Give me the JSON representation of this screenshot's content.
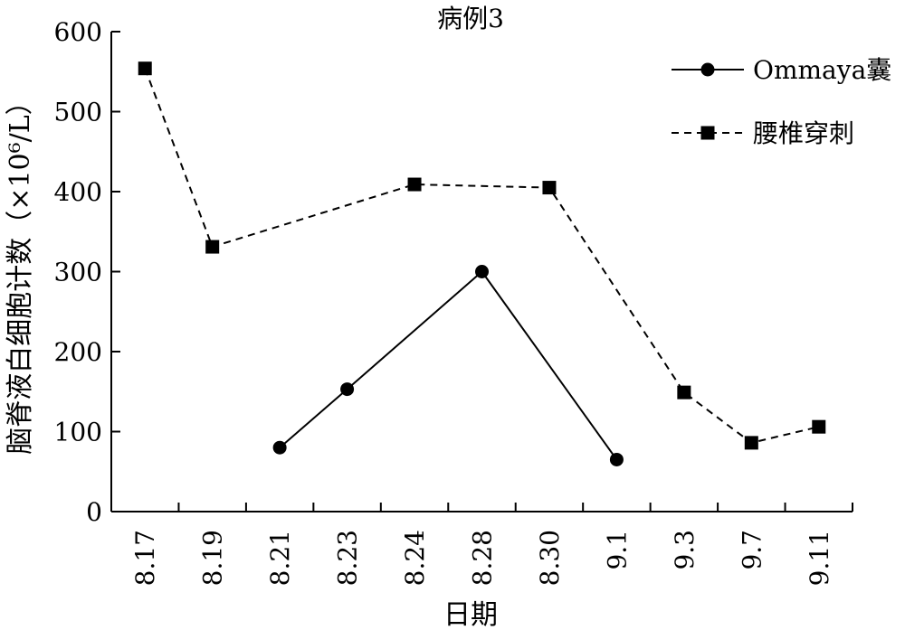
{
  "chart_data": {
    "type": "line",
    "title": "病例3",
    "xlabel": "日期",
    "ylabel": "脑脊液白细胞计数（×10⁶/L）",
    "categories": [
      "8.17",
      "8.19",
      "8.21",
      "8.23",
      "8.24",
      "8.28",
      "8.30",
      "9.1",
      "9.3",
      "9.7",
      "9.11"
    ],
    "ylim": [
      0,
      600
    ],
    "yticks": [
      0,
      100,
      200,
      300,
      400,
      500,
      600
    ],
    "grid": false,
    "legend": "top-right",
    "series": [
      {
        "name": "Ommaya囊",
        "marker": "circle",
        "line": "solid",
        "values": [
          null,
          null,
          80,
          153,
          null,
          300,
          null,
          65,
          null,
          null,
          null
        ]
      },
      {
        "name": "腰椎穿刺",
        "marker": "square",
        "line": "dashed",
        "values": [
          554,
          331,
          null,
          null,
          409,
          null,
          405,
          null,
          149,
          86,
          106
        ]
      }
    ]
  }
}
